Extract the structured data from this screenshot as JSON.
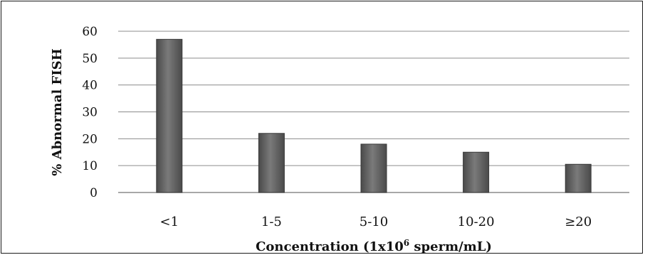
{
  "chart_data": {
    "type": "bar",
    "title": "",
    "xlabel": "Concentration (1x10",
    "xlabel_superscript": "6",
    "xlabel_suffix": " sperm/mL)",
    "ylabel": "% Abnormal FISH",
    "categories": [
      "<1",
      "1-5",
      "5-10",
      "10-20",
      "≥20"
    ],
    "values": [
      57,
      22,
      18,
      15,
      10.5
    ],
    "ylim": [
      0,
      60
    ],
    "yticks": [
      0,
      10,
      20,
      30,
      40,
      50,
      60
    ],
    "grid": true,
    "legend": "none",
    "colors": {
      "bar": "#5e5e5e",
      "bar_edge": "#3a3a3a",
      "bar_highlight": "#8a8a8a",
      "grid": "#8c8c8c"
    }
  }
}
